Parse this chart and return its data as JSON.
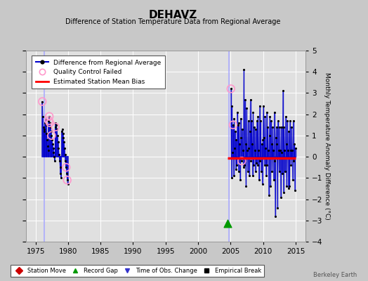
{
  "title": "DEHAVZ",
  "subtitle": "Difference of Station Temperature Data from Regional Average",
  "ylabel": "Monthly Temperature Anomaly Difference (°C)",
  "watermark": "Berkeley Earth",
  "xlim": [
    1973.5,
    2016.5
  ],
  "ylim": [
    -4,
    5
  ],
  "yticks": [
    -4,
    -3,
    -2,
    -1,
    0,
    1,
    2,
    3,
    4,
    5
  ],
  "xticks": [
    1975,
    1980,
    1985,
    1990,
    1995,
    2000,
    2005,
    2010,
    2015
  ],
  "bg_color": "#c8c8c8",
  "plot_bg_color": "#e0e0e0",
  "grid_color": "#ffffff",
  "line_color": "#0000cc",
  "dot_color": "#000000",
  "qc_color": "#ff99cc",
  "bias_color": "#ff0000",
  "vline_color": "#aaaaff",
  "segment1_x": 1976.3,
  "segment2_x": 2004.7,
  "record_gap_x": 2004.5,
  "record_gap_y": -3.15,
  "bias_line_start": 2004.5,
  "bias_line_end": 2015.0,
  "bias_value": -0.05,
  "series1": {
    "times": [
      1976.04,
      1976.12,
      1976.21,
      1976.29,
      1976.37,
      1976.46,
      1976.54,
      1976.62,
      1976.71,
      1976.79,
      1976.87,
      1976.96,
      1977.04,
      1977.12,
      1977.21,
      1977.29,
      1977.37,
      1977.46,
      1977.54,
      1977.62,
      1977.71,
      1977.79,
      1977.87,
      1977.96,
      1978.04,
      1978.12,
      1978.21,
      1978.29,
      1978.37,
      1978.46,
      1978.54,
      1978.62,
      1978.71,
      1978.79,
      1978.87,
      1978.96,
      1979.04,
      1979.12,
      1979.21,
      1979.29,
      1979.37,
      1979.46,
      1979.54,
      1979.62,
      1979.71,
      1979.79,
      1979.87,
      1979.96
    ],
    "values": [
      2.6,
      1.9,
      1.4,
      1.2,
      1.3,
      1.6,
      1.8,
      1.5,
      1.1,
      0.8,
      0.5,
      0.3,
      1.7,
      1.9,
      1.6,
      1.4,
      1.2,
      1.0,
      0.8,
      0.6,
      0.4,
      0.2,
      0.0,
      -0.2,
      1.4,
      1.6,
      1.5,
      1.3,
      1.0,
      0.7,
      0.4,
      0.1,
      -0.2,
      -0.5,
      -0.8,
      -1.0,
      1.2,
      1.3,
      1.1,
      0.9,
      0.7,
      0.4,
      0.1,
      -0.2,
      -0.5,
      -0.8,
      -1.1,
      -1.3
    ],
    "qc_times": [
      1976.04,
      1977.04,
      1977.12,
      1977.21,
      1977.46,
      1978.04,
      1979.71,
      1979.87
    ],
    "qc_values": [
      2.6,
      1.7,
      1.9,
      1.6,
      1.0,
      1.4,
      -0.5,
      -1.1
    ]
  },
  "series2": {
    "times": [
      2005.04,
      2005.12,
      2005.21,
      2005.29,
      2005.37,
      2005.46,
      2005.54,
      2005.62,
      2005.71,
      2005.79,
      2005.87,
      2005.96,
      2006.04,
      2006.12,
      2006.21,
      2006.29,
      2006.37,
      2006.46,
      2006.54,
      2006.62,
      2006.71,
      2006.79,
      2006.87,
      2006.96,
      2007.04,
      2007.12,
      2007.21,
      2007.29,
      2007.37,
      2007.46,
      2007.54,
      2007.62,
      2007.71,
      2007.79,
      2007.87,
      2007.96,
      2008.04,
      2008.12,
      2008.21,
      2008.29,
      2008.37,
      2008.46,
      2008.54,
      2008.62,
      2008.71,
      2008.79,
      2008.87,
      2008.96,
      2009.04,
      2009.12,
      2009.21,
      2009.29,
      2009.37,
      2009.46,
      2009.54,
      2009.62,
      2009.71,
      2009.79,
      2009.87,
      2009.96,
      2010.04,
      2010.12,
      2010.21,
      2010.29,
      2010.37,
      2010.46,
      2010.54,
      2010.62,
      2010.71,
      2010.79,
      2010.87,
      2010.96,
      2011.04,
      2011.12,
      2011.21,
      2011.29,
      2011.37,
      2011.46,
      2011.54,
      2011.62,
      2011.71,
      2011.79,
      2011.87,
      2011.96,
      2012.04,
      2012.12,
      2012.21,
      2012.29,
      2012.37,
      2012.46,
      2012.54,
      2012.62,
      2012.71,
      2012.79,
      2012.87,
      2012.96,
      2013.04,
      2013.12,
      2013.21,
      2013.29,
      2013.37,
      2013.46,
      2013.54,
      2013.62,
      2013.71,
      2013.79,
      2013.87,
      2013.96,
      2014.04,
      2014.12,
      2014.21,
      2014.29,
      2014.37,
      2014.46,
      2014.54,
      2014.62,
      2014.71,
      2014.79,
      2014.87,
      2014.96
    ],
    "values": [
      3.2,
      -1.0,
      2.4,
      0.2,
      1.5,
      -0.9,
      1.8,
      0.4,
      1.2,
      -0.6,
      0.8,
      -0.4,
      2.1,
      1.5,
      -0.7,
      1.6,
      0.6,
      -1.1,
      1.8,
      0.9,
      -0.2,
      1.3,
      0.3,
      -0.5,
      4.1,
      -0.4,
      2.7,
      0.6,
      -1.4,
      2.3,
      0.3,
      -0.7,
      1.7,
      0.4,
      -0.9,
      1.2,
      2.7,
      -0.2,
      1.7,
      0.6,
      -0.9,
      2.1,
      -0.4,
      1.4,
      0.3,
      -0.7,
      1.3,
      -0.3,
      1.7,
      -0.4,
      1.9,
      0.3,
      -1.1,
      2.4,
      -0.2,
      1.7,
      -0.7,
      0.6,
      -1.3,
      0.8,
      2.4,
      0.9,
      -0.4,
      1.9,
      0.4,
      -0.9,
      2.1,
      -0.4,
      1.4,
      0.3,
      -1.8,
      1.0,
      1.9,
      -1.4,
      1.7,
      0.6,
      -0.7,
      1.4,
      0.3,
      -1.1,
      2.1,
      -0.2,
      -2.8,
      0.9,
      1.4,
      0.6,
      -2.4,
      1.7,
      0.3,
      -0.7,
      1.4,
      0.3,
      -1.9,
      1.4,
      0.2,
      -0.8,
      3.1,
      -1.7,
      1.4,
      0.3,
      -0.7,
      1.9,
      0.6,
      -1.4,
      1.7,
      0.3,
      -1.5,
      1.2,
      -1.4,
      1.7,
      0.3,
      -0.4,
      1.4,
      0.3,
      -1.1,
      1.7,
      -0.2,
      0.6,
      -1.6,
      0.4
    ],
    "qc_times": [
      2005.04,
      2005.37,
      2006.71
    ],
    "qc_values": [
      3.2,
      1.5,
      -0.2
    ]
  }
}
